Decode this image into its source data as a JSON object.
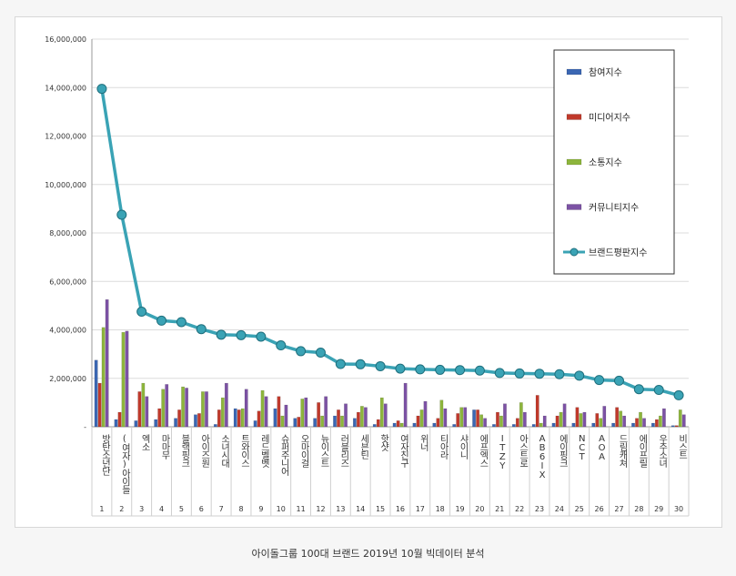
{
  "caption": "아이돌그룹 100대 브랜드 2019년 10월 빅데이터 분석",
  "chart_data": {
    "type": "bar",
    "title": "",
    "xlabel": "",
    "ylabel": "",
    "ylim": [
      0,
      16000000
    ],
    "yticks": [
      "-",
      "2,000,000",
      "4,000,000",
      "6,000,000",
      "8,000,000",
      "10,000,000",
      "12,000,000",
      "14,000,000",
      "16,000,000"
    ],
    "grid": true,
    "legend_position": "top-right",
    "categories": [
      "방탄소년단",
      "(여자)아이들",
      "엑소",
      "마마무",
      "블랙핑크",
      "아이즈원",
      "소녀시대",
      "트와이스",
      "레드벨벳",
      "슈퍼주니어",
      "오마이걸",
      "뉴이스트",
      "러블리즈",
      "세븐틴",
      "핫샷",
      "여자친구",
      "위너",
      "티아라",
      "샤이니",
      "에프엑스",
      "ITZY",
      "아스트로",
      "AB6IX",
      "에이핑크",
      "NCT",
      "AOA",
      "드림캐쳐",
      "에이프릴",
      "우주소녀",
      "비스트"
    ],
    "ranks": [
      "1",
      "2",
      "3",
      "4",
      "5",
      "6",
      "7",
      "8",
      "9",
      "10",
      "11",
      "12",
      "13",
      "14",
      "15",
      "16",
      "17",
      "18",
      "19",
      "20",
      "21",
      "22",
      "23",
      "24",
      "25",
      "26",
      "27",
      "28",
      "29",
      "30"
    ],
    "series": [
      {
        "name": "참여지수",
        "kind": "bar",
        "color": "#3b67b3",
        "values": [
          2750000,
          300000,
          250000,
          300000,
          350000,
          500000,
          100000,
          750000,
          250000,
          750000,
          350000,
          350000,
          450000,
          350000,
          100000,
          150000,
          150000,
          150000,
          100000,
          700000,
          100000,
          100000,
          100000,
          150000,
          150000,
          150000,
          150000,
          150000,
          150000,
          50000
        ]
      },
      {
        "name": "미디어지수",
        "kind": "bar",
        "color": "#c0392b",
        "values": [
          1800000,
          600000,
          1450000,
          750000,
          700000,
          550000,
          700000,
          700000,
          650000,
          1250000,
          400000,
          1000000,
          700000,
          600000,
          300000,
          250000,
          450000,
          350000,
          550000,
          700000,
          600000,
          350000,
          1300000,
          450000,
          800000,
          550000,
          800000,
          350000,
          300000,
          50000
        ]
      },
      {
        "name": "소통지수",
        "kind": "bar",
        "color": "#8db53c",
        "values": [
          4100000,
          3900000,
          1800000,
          1550000,
          1650000,
          1450000,
          1200000,
          750000,
          1500000,
          450000,
          1150000,
          450000,
          450000,
          850000,
          1200000,
          150000,
          700000,
          1100000,
          800000,
          500000,
          450000,
          1000000,
          150000,
          600000,
          550000,
          350000,
          650000,
          600000,
          450000,
          700000
        ]
      },
      {
        "name": "커뮤니티지수",
        "kind": "bar",
        "color": "#7c52a4",
        "values": [
          5250000,
          3950000,
          1250000,
          1750000,
          1600000,
          1450000,
          1800000,
          1550000,
          1250000,
          900000,
          1200000,
          1250000,
          950000,
          800000,
          950000,
          1800000,
          1050000,
          750000,
          800000,
          350000,
          950000,
          600000,
          450000,
          950000,
          600000,
          850000,
          450000,
          350000,
          750000,
          500000
        ]
      },
      {
        "name": "브랜드평판지수",
        "kind": "line",
        "color": "#3aa3b5",
        "values": [
          13950000,
          8750000,
          4750000,
          4380000,
          4320000,
          4030000,
          3800000,
          3780000,
          3720000,
          3360000,
          3120000,
          3060000,
          2590000,
          2580000,
          2500000,
          2400000,
          2370000,
          2350000,
          2340000,
          2320000,
          2220000,
          2200000,
          2190000,
          2170000,
          2110000,
          1930000,
          1900000,
          1550000,
          1520000,
          1300000
        ]
      }
    ]
  }
}
